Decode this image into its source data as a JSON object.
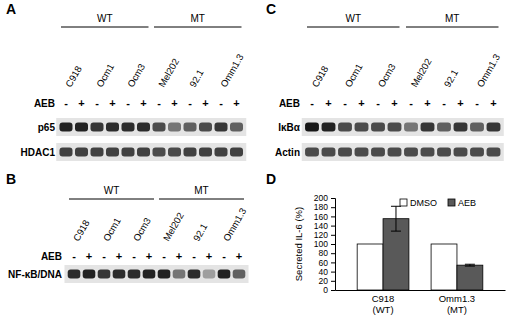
{
  "blots": [
    {
      "panel": "A",
      "groups": [
        {
          "label": "WT",
          "lanes": [
            "C918",
            "Ocm1",
            "Ocm3"
          ]
        },
        {
          "label": "MT",
          "lanes": [
            "Mel202",
            "92.1",
            "Omm1.3"
          ]
        }
      ],
      "treatment": {
        "label": "AEB",
        "signs": [
          "-",
          "+",
          "-",
          "+",
          "-",
          "+",
          "-",
          "+",
          "-",
          "+",
          "-",
          "+"
        ]
      },
      "rows": [
        {
          "label": "p65",
          "intensities": [
            0.9,
            0.9,
            0.8,
            0.85,
            0.85,
            0.85,
            0.7,
            0.5,
            0.6,
            0.7,
            0.8,
            0.6
          ]
        },
        {
          "label": "HDAC1",
          "intensities": [
            0.75,
            0.75,
            0.75,
            0.75,
            0.75,
            0.75,
            0.7,
            0.7,
            0.75,
            0.75,
            0.75,
            0.75
          ]
        }
      ]
    },
    {
      "panel": "B",
      "groups": [
        {
          "label": "WT",
          "lanes": [
            "C918",
            "Ocm1",
            "Ocm3"
          ]
        },
        {
          "label": "MT",
          "lanes": [
            "Mel202",
            "92.1",
            "Omm1.3"
          ]
        }
      ],
      "treatment": {
        "label": "AEB",
        "signs": [
          "-",
          "+",
          "-",
          "+",
          "-",
          "+",
          "-",
          "+",
          "-",
          "+",
          "-",
          "+"
        ]
      },
      "rows": [
        {
          "label": "NF-κB/DNA",
          "intensities": [
            0.85,
            0.9,
            0.8,
            0.85,
            0.85,
            0.9,
            0.9,
            0.5,
            0.85,
            0.3,
            0.9,
            0.6
          ]
        }
      ]
    },
    {
      "panel": "C",
      "groups": [
        {
          "label": "WT",
          "lanes": [
            "C918",
            "Ocm1",
            "Ocm3"
          ]
        },
        {
          "label": "MT",
          "lanes": [
            "Mel202",
            "92.1",
            "Omm1.3"
          ]
        }
      ],
      "treatment": {
        "label": "AEB",
        "signs": [
          "-",
          "+",
          "-",
          "+",
          "-",
          "+",
          "-",
          "+",
          "-",
          "+",
          "-",
          "+"
        ]
      },
      "rows": [
        {
          "label": "IκBα",
          "intensities": [
            0.95,
            0.9,
            0.7,
            0.7,
            0.7,
            0.7,
            0.5,
            0.8,
            0.6,
            0.8,
            0.6,
            0.8
          ]
        },
        {
          "label": "Actin",
          "intensities": [
            0.7,
            0.7,
            0.7,
            0.7,
            0.7,
            0.7,
            0.7,
            0.7,
            0.7,
            0.7,
            0.7,
            0.7
          ]
        }
      ]
    }
  ],
  "chart_data": {
    "panel": "D",
    "type": "bar",
    "categories": [
      "C918 (WT)",
      "Omm1.3 (MT)"
    ],
    "y_label": "Secreted IL-6 (%)",
    "ylim": [
      0,
      200
    ],
    "yticks": [
      0,
      20,
      40,
      60,
      80,
      100,
      120,
      140,
      160,
      180,
      200
    ],
    "legend": "upper right",
    "series": [
      {
        "name": "DMSO",
        "color": "#ffffff",
        "values": [
          100,
          100
        ]
      },
      {
        "name": "AEB",
        "color": "#595959",
        "values": [
          155,
          54
        ],
        "errors": [
          27,
          2
        ]
      }
    ]
  }
}
